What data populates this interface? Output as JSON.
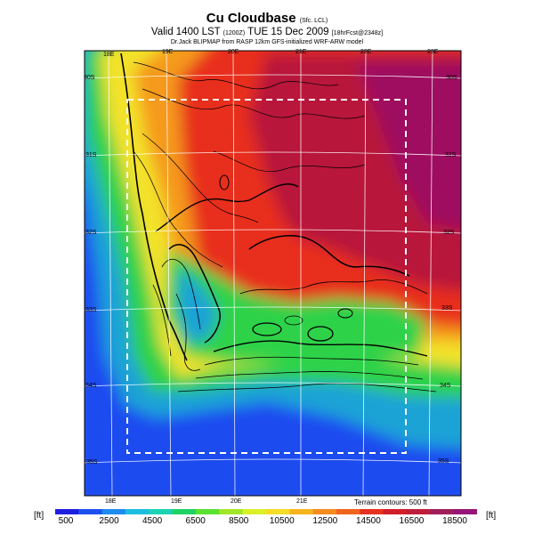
{
  "title": {
    "main": "Cu Cloudbase",
    "main_suffix": "(Sfc. LCL)",
    "valid_line": "Valid 1400 LST",
    "valid_z": "(1200Z)",
    "valid_date": "TUE 15 Dec 2009",
    "valid_fcst": "[18hrFcst@2348z]",
    "credit": "Dr.Jack BLIPMAP from RASP 12km GFS-initialized WRF-ARW model"
  },
  "map": {
    "lon_labels_top": [
      "18E",
      "19E",
      "20E",
      "21E",
      "22E",
      "23E"
    ],
    "lon_labels_bottom": [
      "18E",
      "19E",
      "20E",
      "21E"
    ],
    "lat_labels_left": [
      "30S",
      "31S",
      "32S",
      "33S",
      "34S",
      "35S"
    ],
    "lat_labels_right": [
      "30S",
      "31S",
      "32S",
      "33S",
      "34S",
      "35S"
    ],
    "terrain_note": "Terrain contours: 500 ft",
    "colors": {
      "ocean": "#1e4cf0",
      "low": "#1ea3d6",
      "green": "#2ed24a",
      "yellow": "#f3e22a",
      "orange": "#f59a1e",
      "red": "#e82d1c",
      "darkred": "#b8123a",
      "magenta": "#9e1060"
    }
  },
  "colorbar": {
    "units_left": "[ft]",
    "units_right": "[ft]",
    "labels": [
      "500",
      "2500",
      "4500",
      "6500",
      "8500",
      "10500",
      "12500",
      "14500",
      "16500",
      "18500"
    ],
    "colors": [
      "#1e1ee0",
      "#1e50f0",
      "#1e8cf0",
      "#1ebede",
      "#1ed2b4",
      "#1ed264",
      "#5ae132",
      "#a0e628",
      "#dcf028",
      "#f5dc28",
      "#f5b41e",
      "#f58c1e",
      "#f0641e",
      "#e6321e",
      "#d21e28",
      "#be1e3c",
      "#a01e5a",
      "#961478"
    ]
  }
}
